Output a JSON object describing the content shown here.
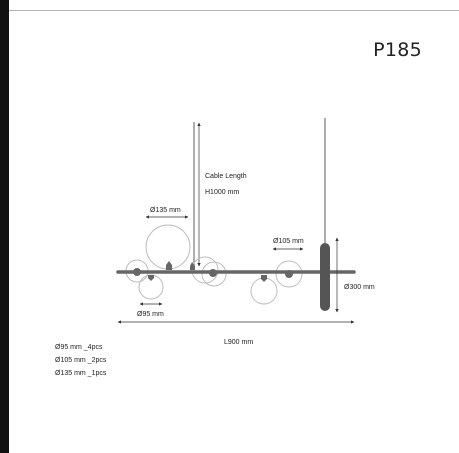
{
  "product": {
    "code": "P185"
  },
  "labels": {
    "cable_length_title": "Cable Length",
    "cable_length_value": "H1000 mm",
    "dia_135": "Ø135 mm",
    "dia_105": "Ø105 mm",
    "dia_95": "Ø95 mm",
    "height_300": "Ø300 mm",
    "length_900": "L900 mm"
  },
  "specs": [
    "Ø95 mm _4pcs",
    "Ø105 mm _2pcs",
    "Ø135 mm _1pcs"
  ],
  "colors": {
    "frame": "#666666",
    "glass": "#bdbdbd",
    "dimension": "#333333",
    "accent_bar": "#111111"
  }
}
